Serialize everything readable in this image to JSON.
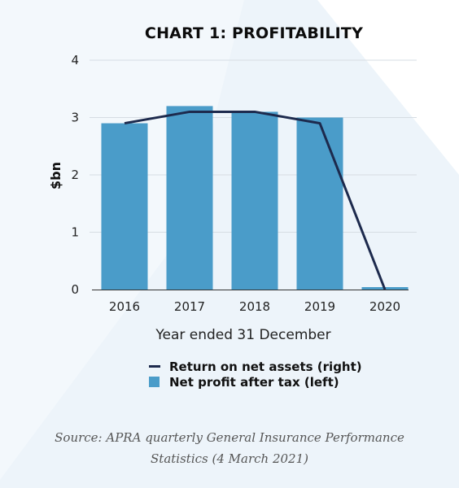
{
  "colors": {
    "background": "#f3f8fc",
    "bar": "#4a9cc9",
    "line": "#1d2a4d"
  },
  "chart_data": {
    "type": "bar",
    "title": "CHART 1: PROFITABILITY",
    "ylabel": "$bn",
    "xlabel": "Year ended 31 December",
    "categories": [
      "2016",
      "2017",
      "2018",
      "2019",
      "2020"
    ],
    "ylim": [
      0,
      4
    ],
    "yticks": [
      "0",
      "1",
      "2",
      "3",
      "4"
    ],
    "grid": true,
    "series": [
      {
        "name": "Net profit after tax (left)",
        "type": "bar",
        "axis": "left",
        "values": [
          2.9,
          3.2,
          3.1,
          3.0,
          0.03
        ]
      },
      {
        "name": "Return on net assets (right)",
        "type": "line",
        "axis": "right",
        "values": [
          2.9,
          3.1,
          3.1,
          2.9,
          0.0
        ]
      }
    ],
    "legend_position": "bottom"
  },
  "source": {
    "line1": "Source: APRA quarterly General Insurance Performance",
    "line2": "Statistics (4 March 2021)"
  }
}
